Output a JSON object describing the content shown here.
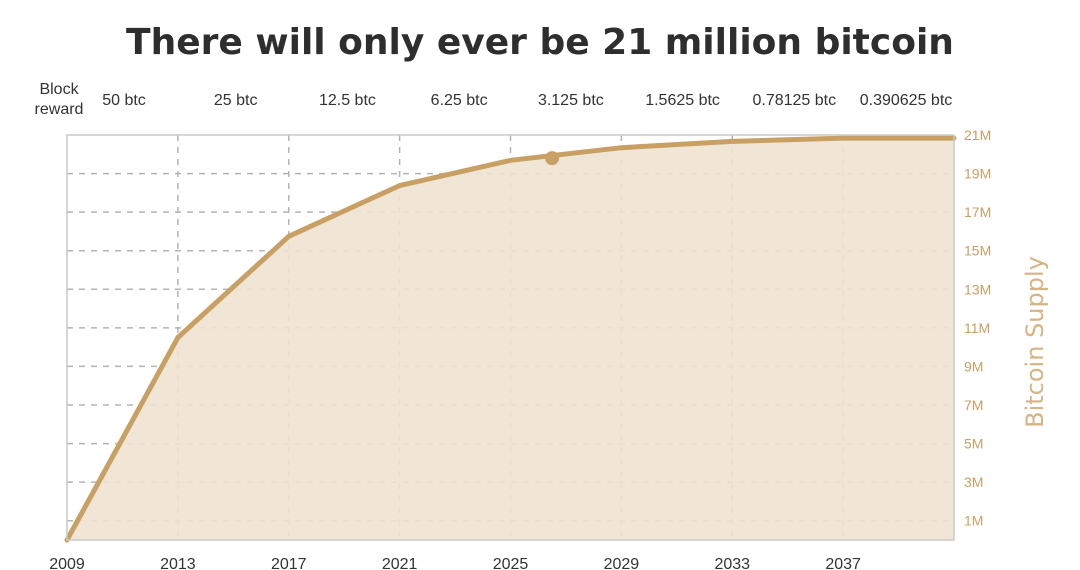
{
  "chart_data": {
    "type": "area",
    "title": "There will only ever be 21 million bitcoin",
    "xlabel": "",
    "ylabel": "Bitcoin Supply",
    "x_ticks": [
      "2009",
      "2013",
      "2017",
      "2021",
      "2025",
      "2029",
      "2033",
      "2037"
    ],
    "y_ticks": [
      "1M",
      "3M",
      "5M",
      "7M",
      "9M",
      "11M",
      "13M",
      "15M",
      "17M",
      "19M",
      "21M"
    ],
    "xlim": [
      2009,
      2041
    ],
    "ylim": [
      0,
      21
    ],
    "y_unit": "million BTC",
    "grid": true,
    "series": [
      {
        "x": [
          2009,
          2013,
          2017,
          2021,
          2025,
          2029,
          2033,
          2037,
          2041
        ],
        "values": [
          0,
          10.5,
          15.75,
          18.375,
          19.6875,
          20.34,
          20.67,
          20.84,
          20.84
        ]
      }
    ],
    "marker": {
      "x": 2026.5,
      "y": 19.8
    },
    "block_reward": {
      "label_line1": "Block",
      "label_line2": "reward",
      "values": [
        "50 btc",
        "25 btc",
        "12.5 btc",
        "6.25 btc",
        "3.125 btc",
        "1.5625 btc",
        "0.78125 btc",
        "0.390625 btc"
      ]
    },
    "colors": {
      "line": "#c8a064",
      "fill": "#efe3d1",
      "grid": "#b4b4b4",
      "y_tick_text": "#c8a064",
      "y_axis_label": "#d6b483",
      "text": "#333333"
    }
  }
}
